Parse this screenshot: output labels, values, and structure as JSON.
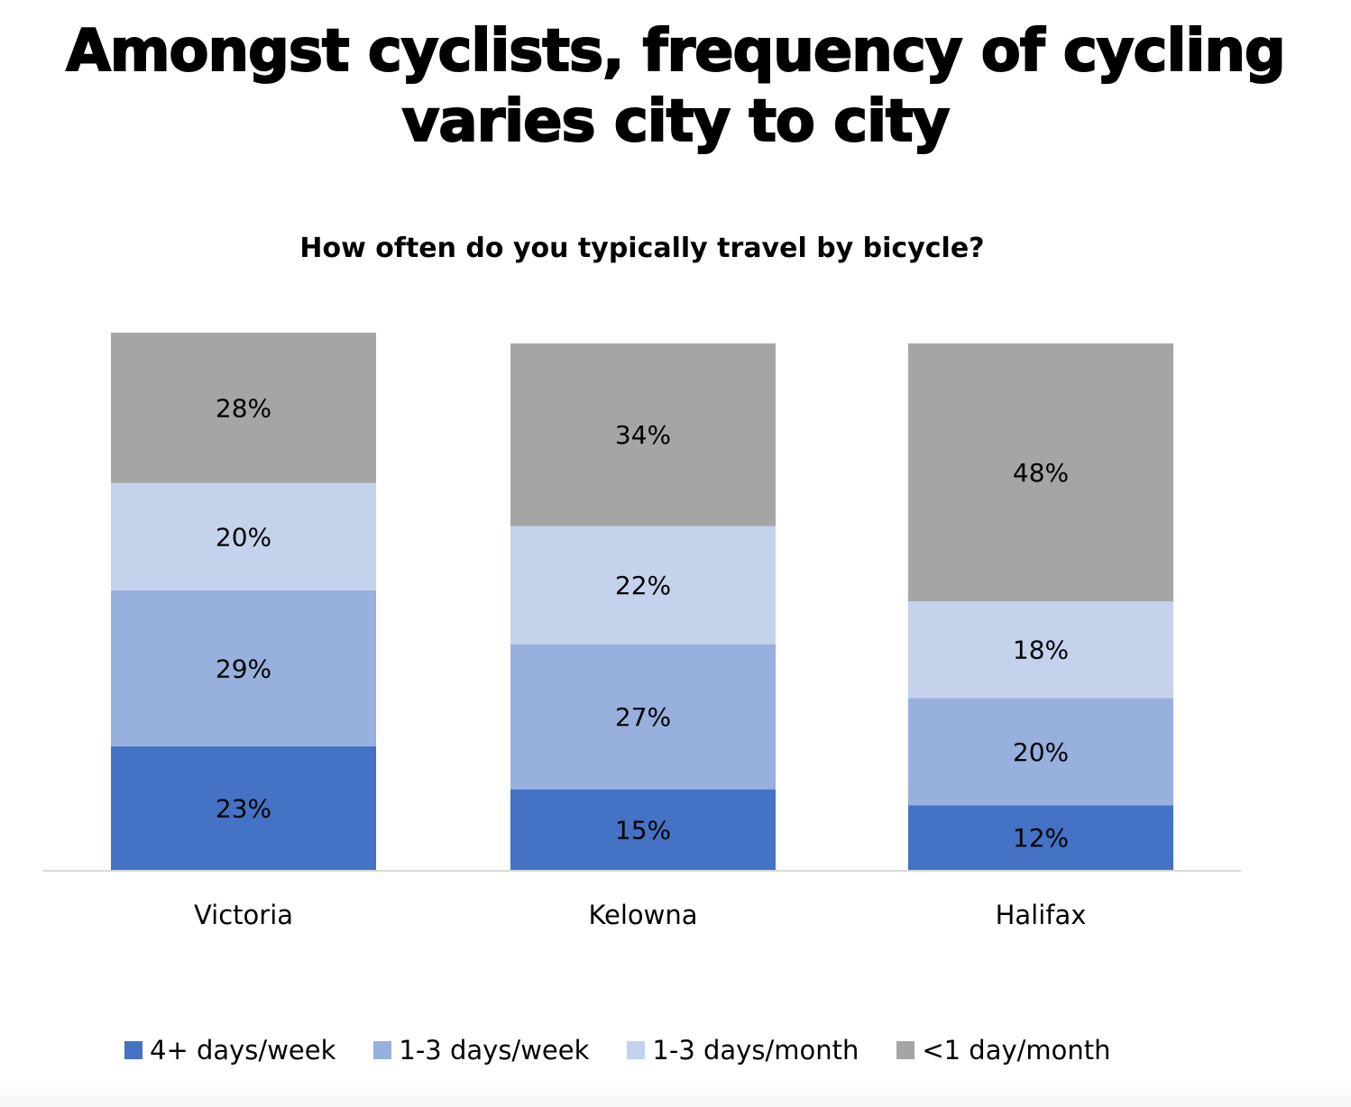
{
  "title_line1": "Amongst cyclists, frequency of cycling",
  "title_line2": "varies city to city",
  "chart_data": {
    "type": "bar",
    "stacked": true,
    "title": "How often do you typically travel by bicycle?",
    "xlabel": "",
    "ylabel": "",
    "ylim": [
      0,
      100
    ],
    "grid": false,
    "legend_position": "bottom",
    "categories": [
      "Victoria",
      "Kelowna",
      "Halifax"
    ],
    "series": [
      {
        "name": "4+ days/week",
        "color": "#4472C4",
        "values": [
          23,
          15,
          12
        ],
        "labels": [
          "23%",
          "15%",
          "12%"
        ]
      },
      {
        "name": "1-3 days/week",
        "color": "#97B0DD",
        "values": [
          29,
          27,
          20
        ],
        "labels": [
          "29%",
          "27%",
          "20%"
        ]
      },
      {
        "name": "1-3 days/month",
        "color": "#C4D2EC",
        "values": [
          20,
          22,
          18
        ],
        "labels": [
          "20%",
          "22%",
          "18%"
        ]
      },
      {
        "name": "<1 day/month",
        "color": "#A5A5A5",
        "values": [
          28,
          34,
          48
        ],
        "labels": [
          "28%",
          "34%",
          "48%"
        ]
      }
    ]
  }
}
